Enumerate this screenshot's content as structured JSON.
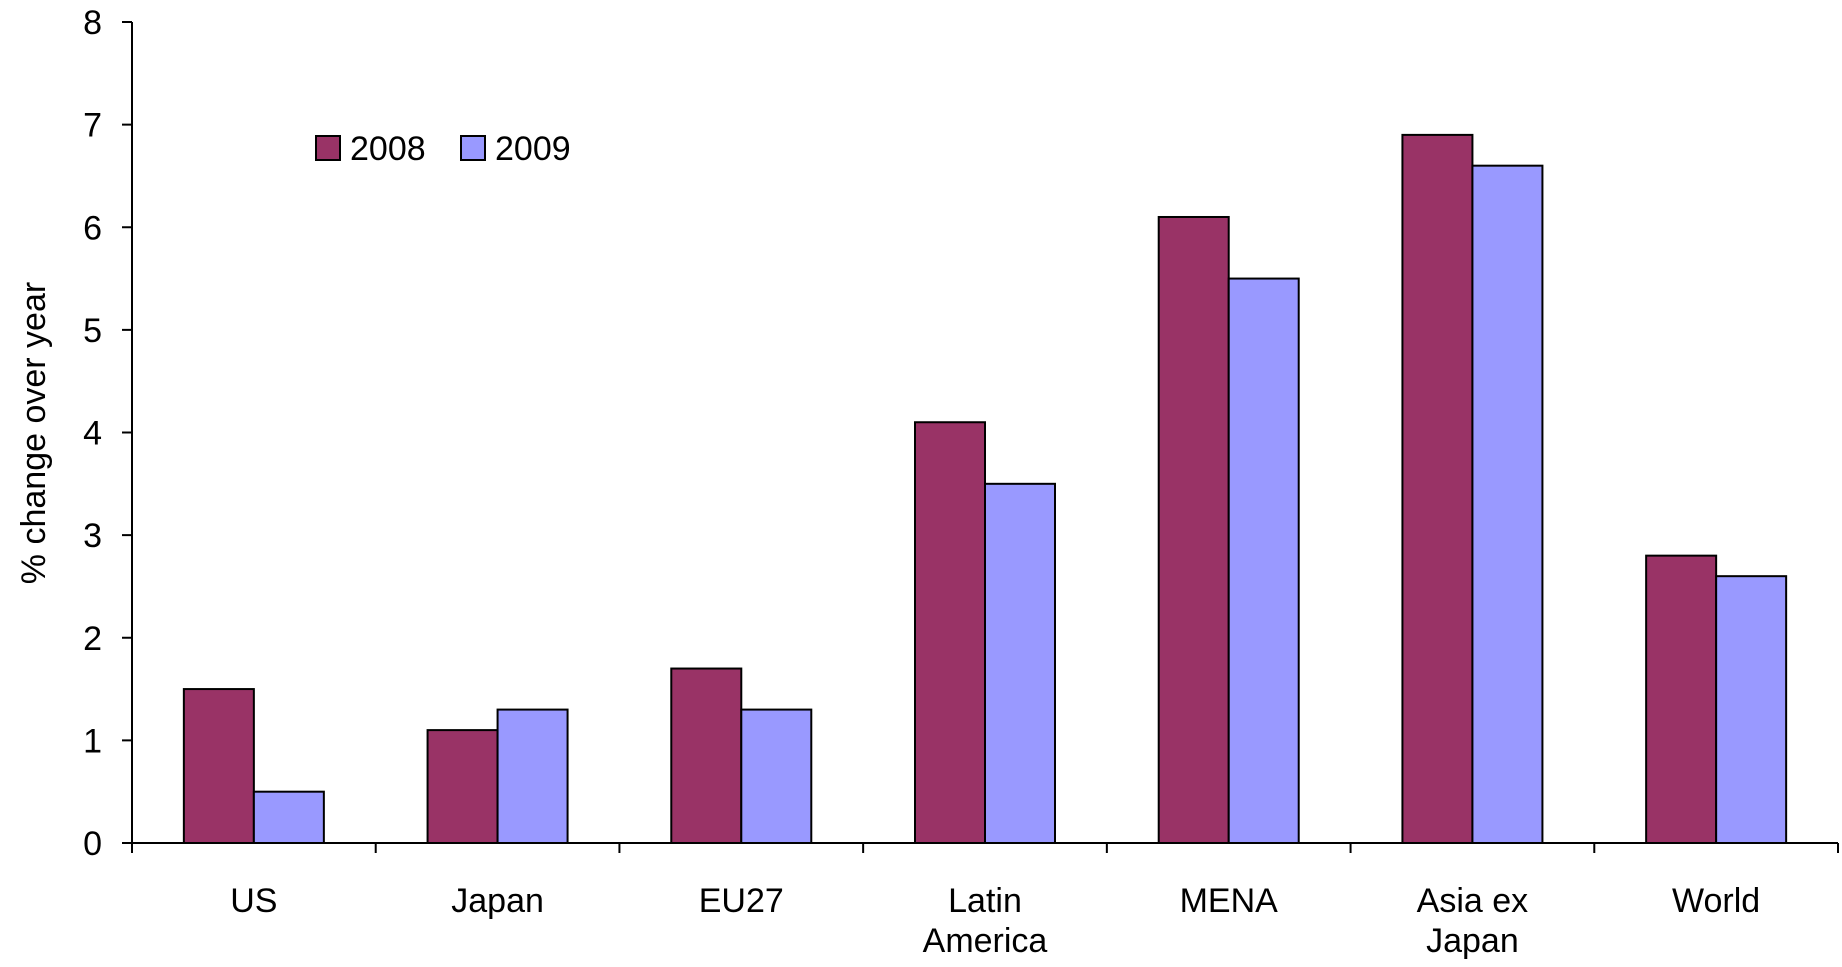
{
  "chart_data": {
    "type": "bar",
    "title": "",
    "xlabel": "",
    "ylabel": "% change over year",
    "ylim": [
      0,
      8
    ],
    "yticks": [
      0,
      1,
      2,
      3,
      4,
      5,
      6,
      7,
      8
    ],
    "grid": false,
    "legend_position": "top-left",
    "categories": [
      [
        "US"
      ],
      [
        "Japan"
      ],
      [
        "EU27"
      ],
      [
        "Latin",
        "America"
      ],
      [
        "MENA"
      ],
      [
        "Asia ex",
        "Japan"
      ],
      [
        "World"
      ]
    ],
    "series": [
      {
        "name": "2008",
        "color": "#993366",
        "values": [
          1.5,
          1.1,
          1.7,
          4.1,
          6.1,
          6.9,
          2.8
        ]
      },
      {
        "name": "2009",
        "color": "#9999FF",
        "values": [
          0.5,
          1.3,
          1.3,
          3.5,
          5.5,
          6.6,
          2.6
        ]
      }
    ]
  }
}
